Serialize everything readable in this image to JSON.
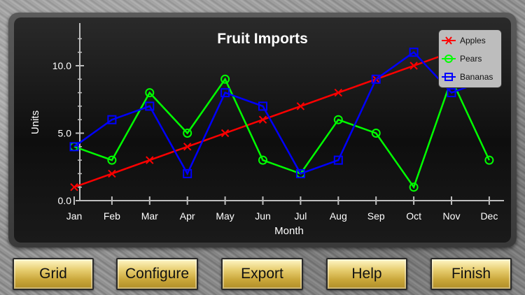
{
  "chart_data": {
    "type": "line",
    "title": "Fruit Imports",
    "xlabel": "Month",
    "ylabel": "Units",
    "categories": [
      "Jan",
      "Feb",
      "Mar",
      "Apr",
      "May",
      "Jun",
      "Jul",
      "Aug",
      "Sep",
      "Oct",
      "Nov",
      "Dec"
    ],
    "yticks": [
      "0.0",
      "5.0",
      "10.0"
    ],
    "ylim": [
      0,
      12.5
    ],
    "grid": false,
    "legend_position": "top-right",
    "series": [
      {
        "name": "Apples",
        "marker": "x",
        "color": "#ff0000",
        "values": [
          1,
          2,
          3,
          4,
          5,
          6,
          7,
          8,
          9,
          10,
          11,
          12
        ]
      },
      {
        "name": "Pears",
        "marker": "circle",
        "color": "#00ff00",
        "values": [
          4,
          3,
          8,
          5,
          9,
          3,
          2,
          6,
          5,
          1,
          9,
          3
        ]
      },
      {
        "name": "Bananas",
        "marker": "square",
        "color": "#0000ff",
        "values": [
          4,
          6,
          7,
          2,
          8,
          7,
          2,
          3,
          9,
          11,
          8,
          9
        ]
      }
    ]
  },
  "toolbar": {
    "grid_label": "Grid",
    "configure_label": "Configure",
    "export_label": "Export",
    "help_label": "Help",
    "finish_label": "Finish"
  }
}
